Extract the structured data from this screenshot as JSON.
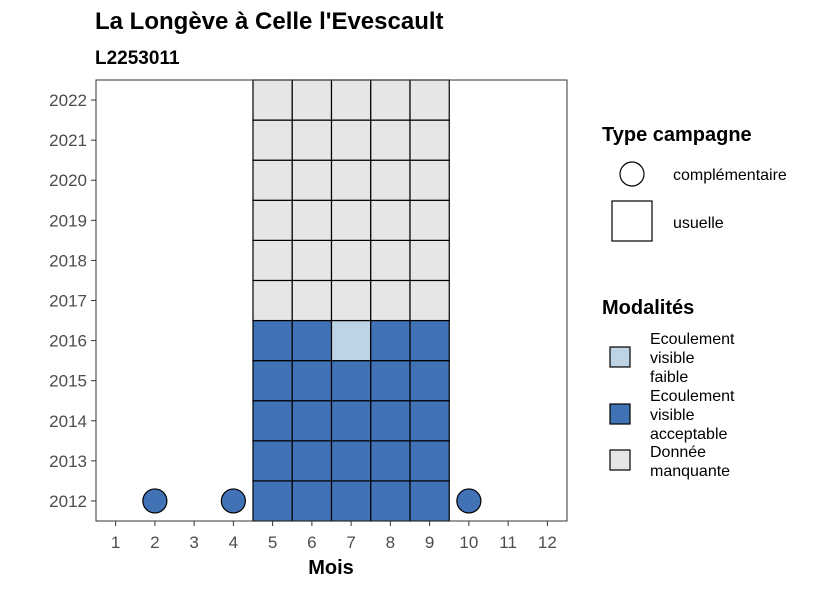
{
  "chart_data": {
    "type": "heatmap",
    "title": "La Longève à Celle l'Evescault",
    "subtitle": "L2253011",
    "xlabel": "Mois",
    "ylabel": "",
    "x_ticks": [
      1,
      2,
      3,
      4,
      5,
      6,
      7,
      8,
      9,
      10,
      11,
      12
    ],
    "y_ticks": [
      2012,
      2013,
      2014,
      2015,
      2016,
      2017,
      2018,
      2019,
      2020,
      2021,
      2022
    ],
    "xlim": [
      0.5,
      12.5
    ],
    "ylim": [
      2011.5,
      2022.5
    ],
    "grid": false,
    "legend_position": "right",
    "legends": [
      {
        "title": "Type campagne",
        "entries": [
          {
            "shape": "circle",
            "label": "complémentaire"
          },
          {
            "shape": "square",
            "label": "usuelle"
          }
        ]
      },
      {
        "title": "Modalités",
        "entries": [
          {
            "key": "faible",
            "lines": [
              "Ecoulement",
              "visible",
              "faible"
            ],
            "color": "#bed3e3"
          },
          {
            "key": "acceptable",
            "lines": [
              "Ecoulement",
              "visible",
              "acceptable"
            ],
            "color": "#4272b6"
          },
          {
            "key": "manquante",
            "lines": [
              "Donnée",
              "manquante"
            ],
            "color": "#e6e6e6"
          }
        ]
      }
    ],
    "colors": {
      "faible": "#bed3e3",
      "acceptable": "#4272b6",
      "manquante": "#e6e6e6"
    },
    "points": [
      {
        "month": 2,
        "year": 2012,
        "campagne": "complémentaire",
        "modalite": "acceptable"
      },
      {
        "month": 4,
        "year": 2012,
        "campagne": "complémentaire",
        "modalite": "acceptable"
      },
      {
        "month": 10,
        "year": 2012,
        "campagne": "complémentaire",
        "modalite": "acceptable"
      },
      {
        "month": 5,
        "year": 2012,
        "campagne": "usuelle",
        "modalite": "acceptable"
      },
      {
        "month": 6,
        "year": 2012,
        "campagne": "usuelle",
        "modalite": "acceptable"
      },
      {
        "month": 7,
        "year": 2012,
        "campagne": "usuelle",
        "modalite": "acceptable"
      },
      {
        "month": 8,
        "year": 2012,
        "campagne": "usuelle",
        "modalite": "acceptable"
      },
      {
        "month": 9,
        "year": 2012,
        "campagne": "usuelle",
        "modalite": "acceptable"
      },
      {
        "month": 5,
        "year": 2013,
        "campagne": "usuelle",
        "modalite": "acceptable"
      },
      {
        "month": 6,
        "year": 2013,
        "campagne": "usuelle",
        "modalite": "acceptable"
      },
      {
        "month": 7,
        "year": 2013,
        "campagne": "usuelle",
        "modalite": "acceptable"
      },
      {
        "month": 8,
        "year": 2013,
        "campagne": "usuelle",
        "modalite": "acceptable"
      },
      {
        "month": 9,
        "year": 2013,
        "campagne": "usuelle",
        "modalite": "acceptable"
      },
      {
        "month": 5,
        "year": 2014,
        "campagne": "usuelle",
        "modalite": "acceptable"
      },
      {
        "month": 6,
        "year": 2014,
        "campagne": "usuelle",
        "modalite": "acceptable"
      },
      {
        "month": 7,
        "year": 2014,
        "campagne": "usuelle",
        "modalite": "acceptable"
      },
      {
        "month": 8,
        "year": 2014,
        "campagne": "usuelle",
        "modalite": "acceptable"
      },
      {
        "month": 9,
        "year": 2014,
        "campagne": "usuelle",
        "modalite": "acceptable"
      },
      {
        "month": 5,
        "year": 2015,
        "campagne": "usuelle",
        "modalite": "acceptable"
      },
      {
        "month": 6,
        "year": 2015,
        "campagne": "usuelle",
        "modalite": "acceptable"
      },
      {
        "month": 7,
        "year": 2015,
        "campagne": "usuelle",
        "modalite": "acceptable"
      },
      {
        "month": 8,
        "year": 2015,
        "campagne": "usuelle",
        "modalite": "acceptable"
      },
      {
        "month": 9,
        "year": 2015,
        "campagne": "usuelle",
        "modalite": "acceptable"
      },
      {
        "month": 5,
        "year": 2016,
        "campagne": "usuelle",
        "modalite": "acceptable"
      },
      {
        "month": 6,
        "year": 2016,
        "campagne": "usuelle",
        "modalite": "acceptable"
      },
      {
        "month": 7,
        "year": 2016,
        "campagne": "usuelle",
        "modalite": "faible"
      },
      {
        "month": 8,
        "year": 2016,
        "campagne": "usuelle",
        "modalite": "acceptable"
      },
      {
        "month": 9,
        "year": 2016,
        "campagne": "usuelle",
        "modalite": "acceptable"
      },
      {
        "month": 5,
        "year": 2017,
        "campagne": "usuelle",
        "modalite": "manquante"
      },
      {
        "month": 6,
        "year": 2017,
        "campagne": "usuelle",
        "modalite": "manquante"
      },
      {
        "month": 7,
        "year": 2017,
        "campagne": "usuelle",
        "modalite": "manquante"
      },
      {
        "month": 8,
        "year": 2017,
        "campagne": "usuelle",
        "modalite": "manquante"
      },
      {
        "month": 9,
        "year": 2017,
        "campagne": "usuelle",
        "modalite": "manquante"
      },
      {
        "month": 5,
        "year": 2018,
        "campagne": "usuelle",
        "modalite": "manquante"
      },
      {
        "month": 6,
        "year": 2018,
        "campagne": "usuelle",
        "modalite": "manquante"
      },
      {
        "month": 7,
        "year": 2018,
        "campagne": "usuelle",
        "modalite": "manquante"
      },
      {
        "month": 8,
        "year": 2018,
        "campagne": "usuelle",
        "modalite": "manquante"
      },
      {
        "month": 9,
        "year": 2018,
        "campagne": "usuelle",
        "modalite": "manquante"
      },
      {
        "month": 5,
        "year": 2019,
        "campagne": "usuelle",
        "modalite": "manquante"
      },
      {
        "month": 6,
        "year": 2019,
        "campagne": "usuelle",
        "modalite": "manquante"
      },
      {
        "month": 7,
        "year": 2019,
        "campagne": "usuelle",
        "modalite": "manquante"
      },
      {
        "month": 8,
        "year": 2019,
        "campagne": "usuelle",
        "modalite": "manquante"
      },
      {
        "month": 9,
        "year": 2019,
        "campagne": "usuelle",
        "modalite": "manquante"
      },
      {
        "month": 5,
        "year": 2020,
        "campagne": "usuelle",
        "modalite": "manquante"
      },
      {
        "month": 6,
        "year": 2020,
        "campagne": "usuelle",
        "modalite": "manquante"
      },
      {
        "month": 7,
        "year": 2020,
        "campagne": "usuelle",
        "modalite": "manquante"
      },
      {
        "month": 8,
        "year": 2020,
        "campagne": "usuelle",
        "modalite": "manquante"
      },
      {
        "month": 9,
        "year": 2020,
        "campagne": "usuelle",
        "modalite": "manquante"
      },
      {
        "month": 5,
        "year": 2021,
        "campagne": "usuelle",
        "modalite": "manquante"
      },
      {
        "month": 6,
        "year": 2021,
        "campagne": "usuelle",
        "modalite": "manquante"
      },
      {
        "month": 7,
        "year": 2021,
        "campagne": "usuelle",
        "modalite": "manquante"
      },
      {
        "month": 8,
        "year": 2021,
        "campagne": "usuelle",
        "modalite": "manquante"
      },
      {
        "month": 9,
        "year": 2021,
        "campagne": "usuelle",
        "modalite": "manquante"
      },
      {
        "month": 5,
        "year": 2022,
        "campagne": "usuelle",
        "modalite": "manquante"
      },
      {
        "month": 6,
        "year": 2022,
        "campagne": "usuelle",
        "modalite": "manquante"
      },
      {
        "month": 7,
        "year": 2022,
        "campagne": "usuelle",
        "modalite": "manquante"
      },
      {
        "month": 8,
        "year": 2022,
        "campagne": "usuelle",
        "modalite": "manquante"
      },
      {
        "month": 9,
        "year": 2022,
        "campagne": "usuelle",
        "modalite": "manquante"
      }
    ]
  }
}
